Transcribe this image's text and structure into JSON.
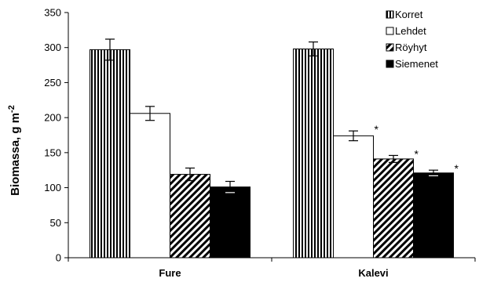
{
  "chart_data": {
    "type": "bar",
    "ylabel": "Biomassa, g m",
    "ylabel_sup": "-2",
    "ylim": [
      0,
      350
    ],
    "y_ticks": [
      0,
      50,
      100,
      150,
      200,
      250,
      300,
      350
    ],
    "categories": [
      "Fure",
      "Kalevi"
    ],
    "series": [
      {
        "name": "Korret",
        "pattern": "vertical-stripes",
        "values": [
          297,
          298
        ],
        "errors": [
          15,
          10
        ],
        "marks": [
          "",
          ""
        ]
      },
      {
        "name": "Lehdet",
        "pattern": "white",
        "values": [
          206,
          174
        ],
        "errors": [
          10,
          7
        ],
        "marks": [
          "",
          "*"
        ]
      },
      {
        "name": "Röyhyt",
        "pattern": "diagonal-stripes",
        "values": [
          119,
          141
        ],
        "errors": [
          9,
          5
        ],
        "marks": [
          "",
          "*"
        ]
      },
      {
        "name": "Siemenet",
        "pattern": "black",
        "values": [
          101,
          121
        ],
        "errors": [
          8,
          4
        ],
        "marks": [
          "",
          "*"
        ]
      }
    ],
    "legend_position": "top-right",
    "grid": false
  }
}
